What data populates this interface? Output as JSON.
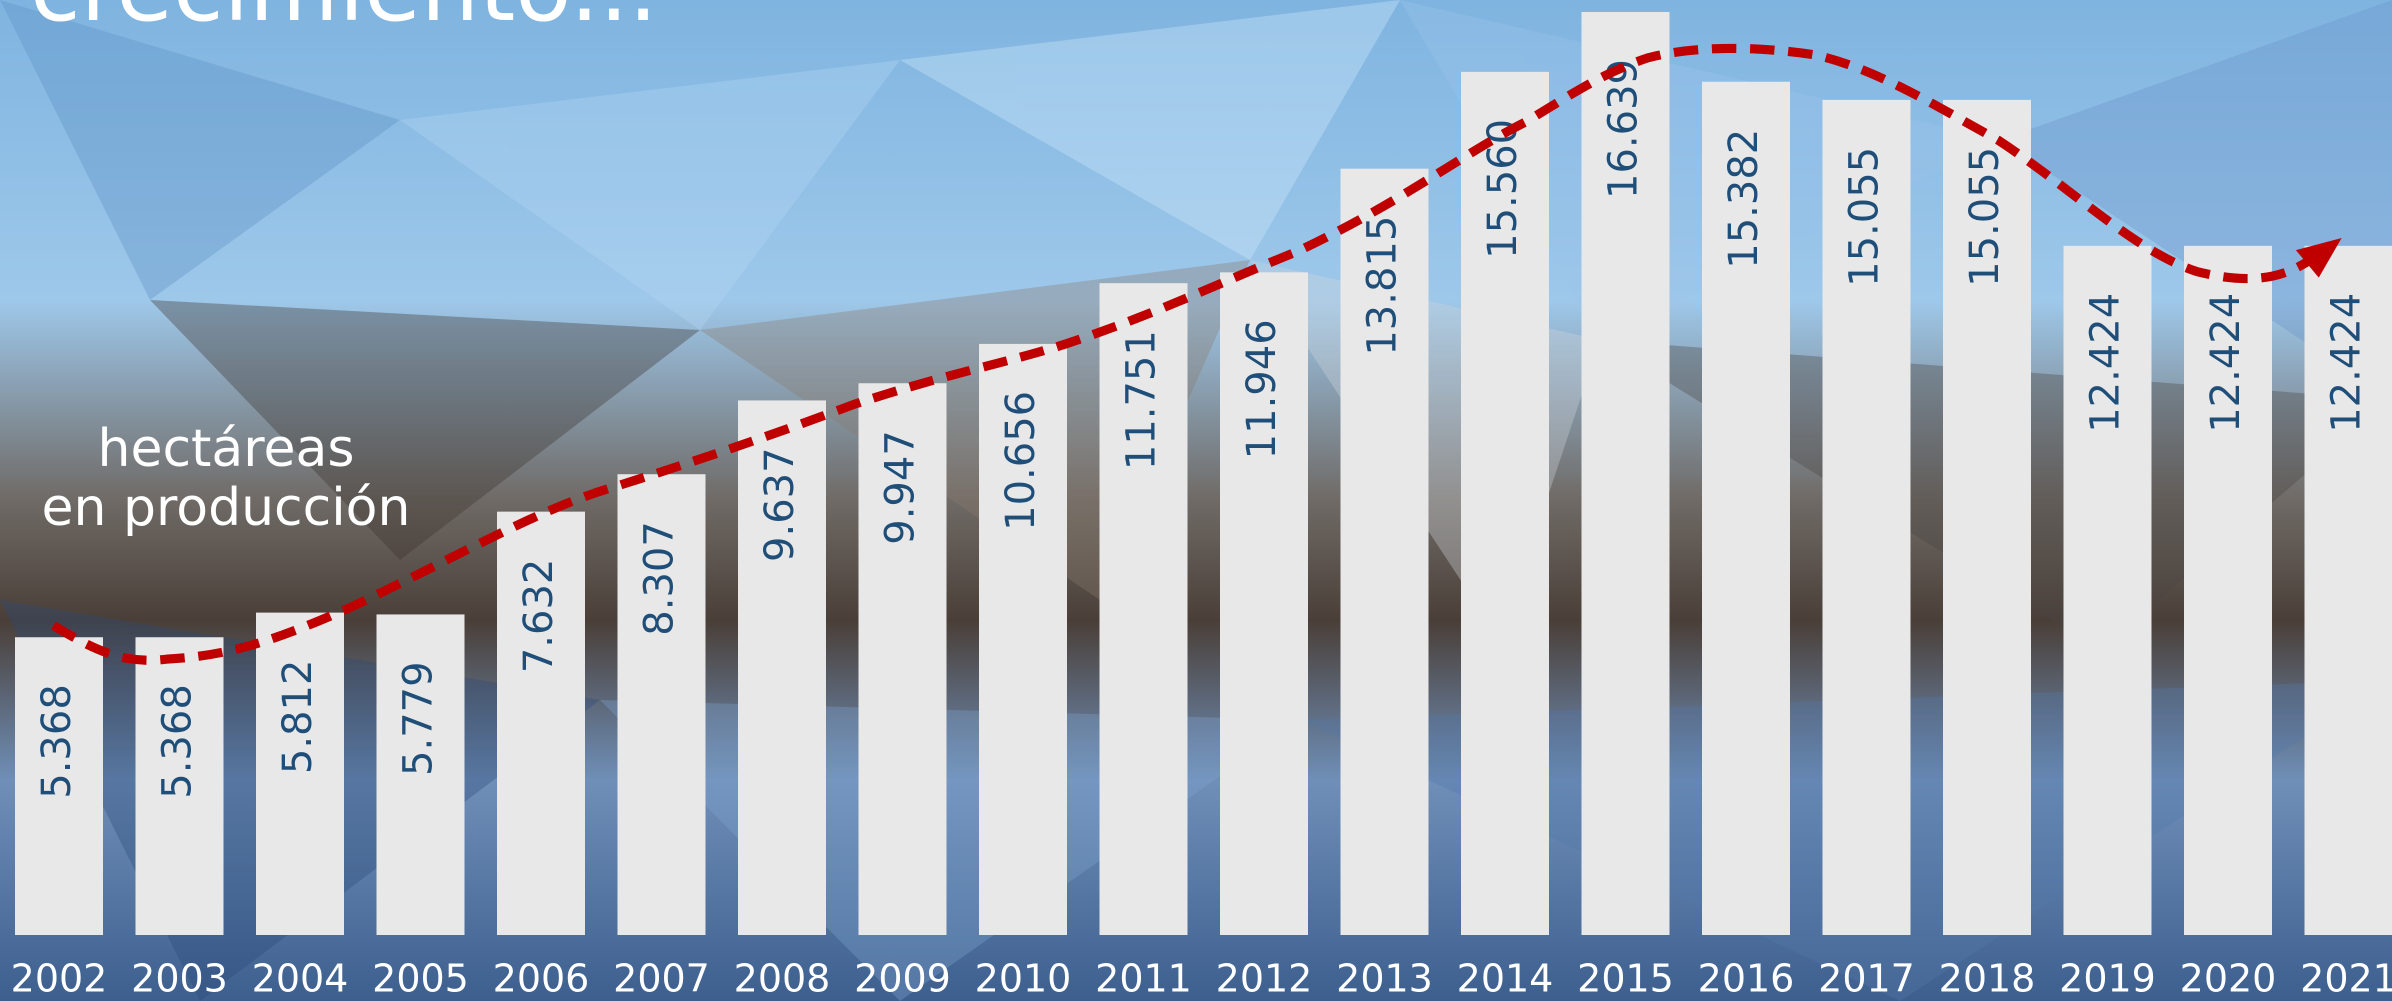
{
  "chart_data": {
    "type": "bar",
    "title": "crecimiento...",
    "annotation": [
      "hectáreas",
      "en producción"
    ],
    "categories": [
      "2002",
      "2003",
      "2004",
      "2005",
      "2006",
      "2007",
      "2008",
      "2009",
      "2010",
      "2011",
      "2012",
      "2013",
      "2014",
      "2015",
      "2016",
      "2017",
      "2018",
      "2019",
      "2020",
      "2021"
    ],
    "values": [
      5368,
      5368,
      5812,
      5779,
      7632,
      8307,
      9637,
      9947,
      10656,
      11751,
      11946,
      13815,
      15560,
      16639,
      15382,
      15055,
      15055,
      12424,
      12424,
      12424
    ],
    "value_labels": [
      "5.368",
      "5.368",
      "5.812",
      "5.779",
      "7.632",
      "8.307",
      "9.637",
      "9.947",
      "10.656",
      "11.751",
      "11.946",
      "13.815",
      "15.560",
      "16.639",
      "15.382",
      "15.055",
      "15.055",
      "12.424",
      "12.424",
      "12.424"
    ],
    "color": "#e8e8e8",
    "label_color": "#1f4e79",
    "ylim": [
      0,
      17000
    ]
  }
}
